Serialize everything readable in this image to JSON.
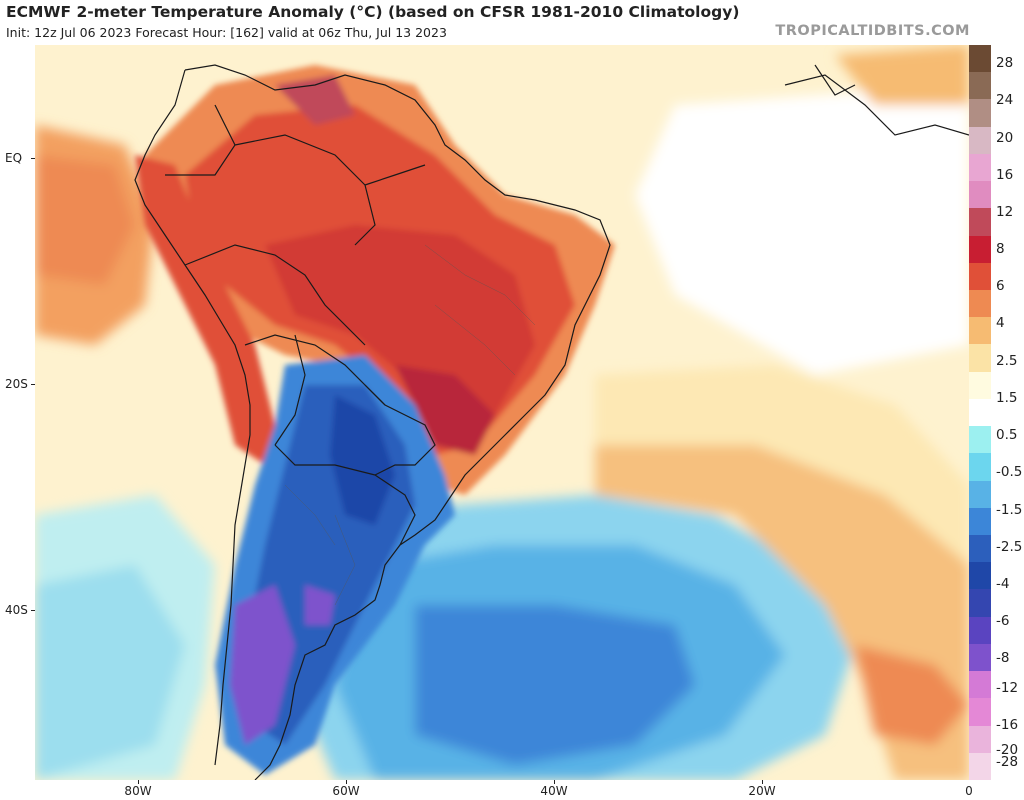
{
  "header": {
    "title": "ECMWF 2-meter Temperature Anomaly (°C) (based on CFSR 1981-2010 Climatology)",
    "subtitle": "Init: 12z Jul 06 2023   Forecast Hour: [162]   valid at 06z Thu, Jul 13 2023",
    "brand": "TROPICALTIDBITS.COM"
  },
  "axes": {
    "lat_labels": [
      "EQ",
      "20S",
      "40S"
    ],
    "lon_labels": [
      "80W",
      "60W",
      "40W",
      "20W",
      "0"
    ]
  },
  "colorbar": {
    "labels": [
      "28",
      "24",
      "20",
      "16",
      "12",
      "8",
      "6",
      "4",
      "2.5",
      "1.5",
      "0.5",
      "-0.5",
      "-1.5",
      "-2.5",
      "-4",
      "-6",
      "-8",
      "-12",
      "-16",
      "-20",
      "-28"
    ],
    "colors": [
      "#6b4a33",
      "#8a6a55",
      "#b08e84",
      "#d8b8c4",
      "#e8a6d2",
      "#e08cc0",
      "#c04a5a",
      "#c81e32",
      "#e05038",
      "#ee8a52",
      "#f6bb72",
      "#fbe3a6",
      "#fffbe0",
      "#ffffff",
      "#9cf0f0",
      "#6cd6ee",
      "#58b2e6",
      "#3c86d8",
      "#2c5fbc",
      "#1f47a8",
      "#3446b0",
      "#5a44c0",
      "#7e52cc",
      "#d47ad6",
      "#e488d6",
      "#eab4dc",
      "#f3d6e8"
    ]
  }
}
